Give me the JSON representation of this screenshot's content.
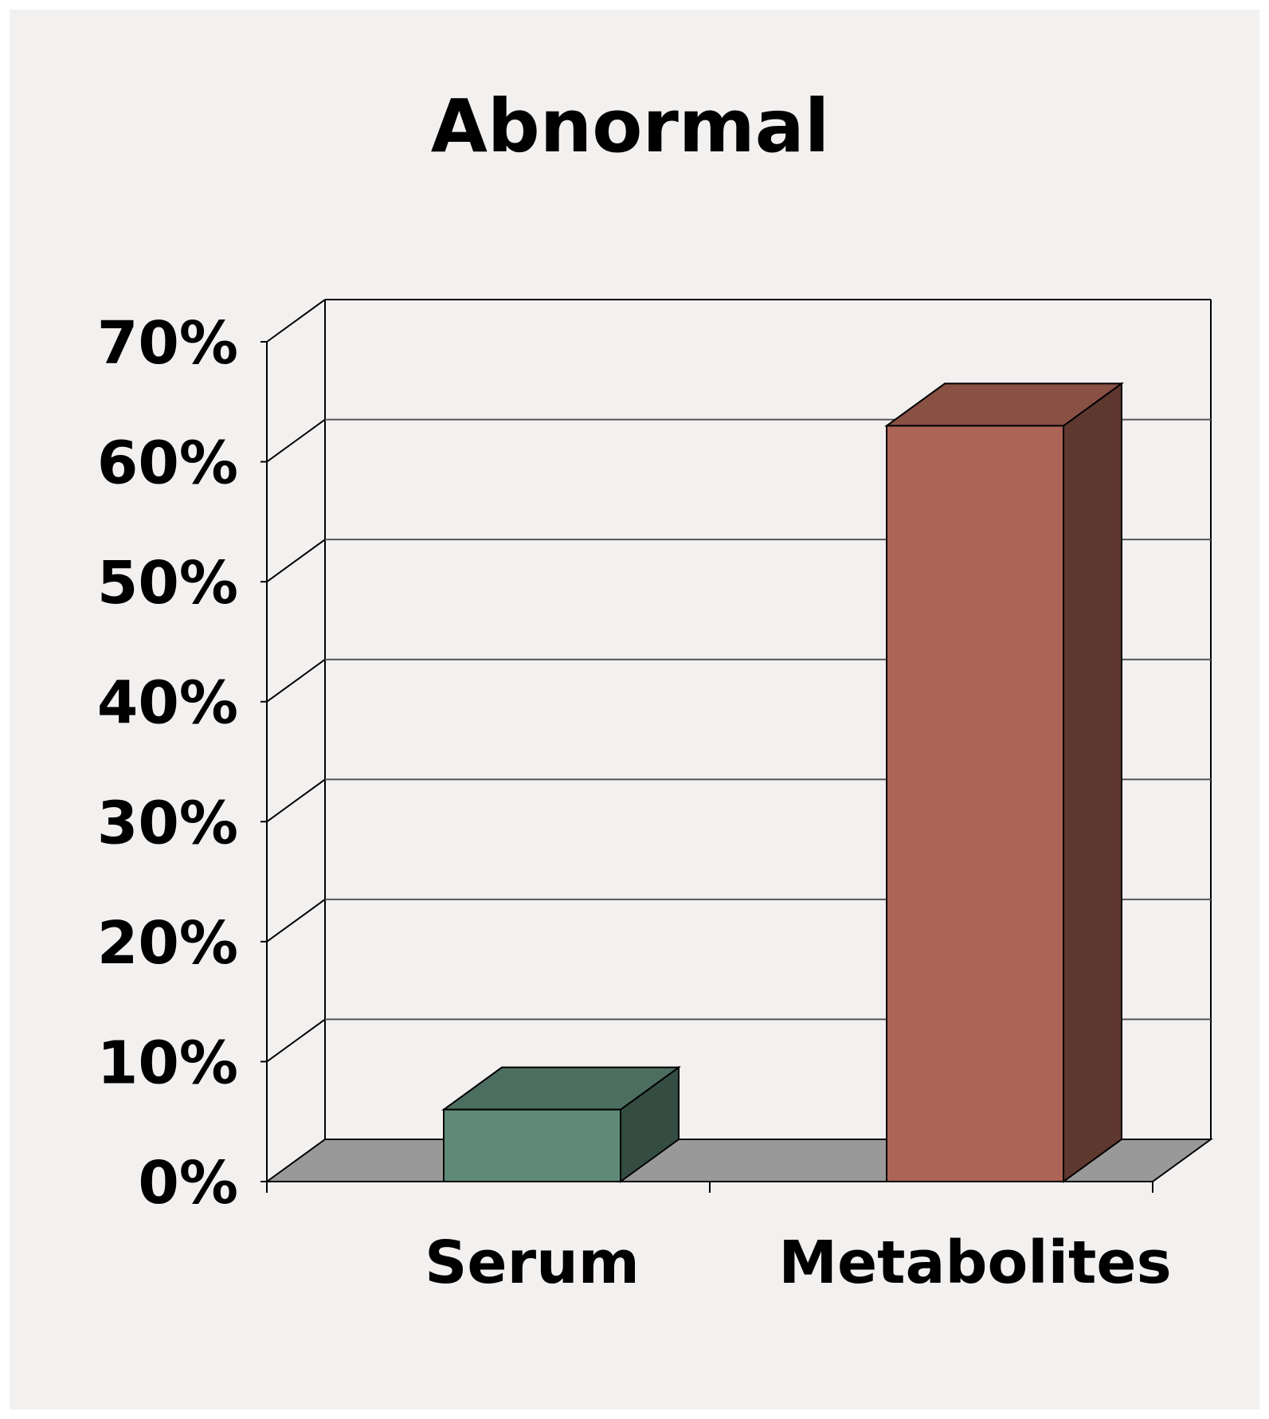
{
  "chart_data": {
    "type": "bar",
    "style": "3d-column",
    "title": "Abnormal",
    "categories": [
      "Serum",
      "Metabolites"
    ],
    "values": [
      6,
      63
    ],
    "value_unit": "%",
    "ylim": [
      0,
      70
    ],
    "yticks": [
      "0%",
      "10%",
      "20%",
      "30%",
      "40%",
      "50%",
      "60%",
      "70%"
    ],
    "grid": true,
    "legend": "none",
    "colors": {
      "Serum": "#5f8a78",
      "Metabolites": "#ab6455",
      "floor": "#999999",
      "background": "#f3f0f0"
    }
  }
}
